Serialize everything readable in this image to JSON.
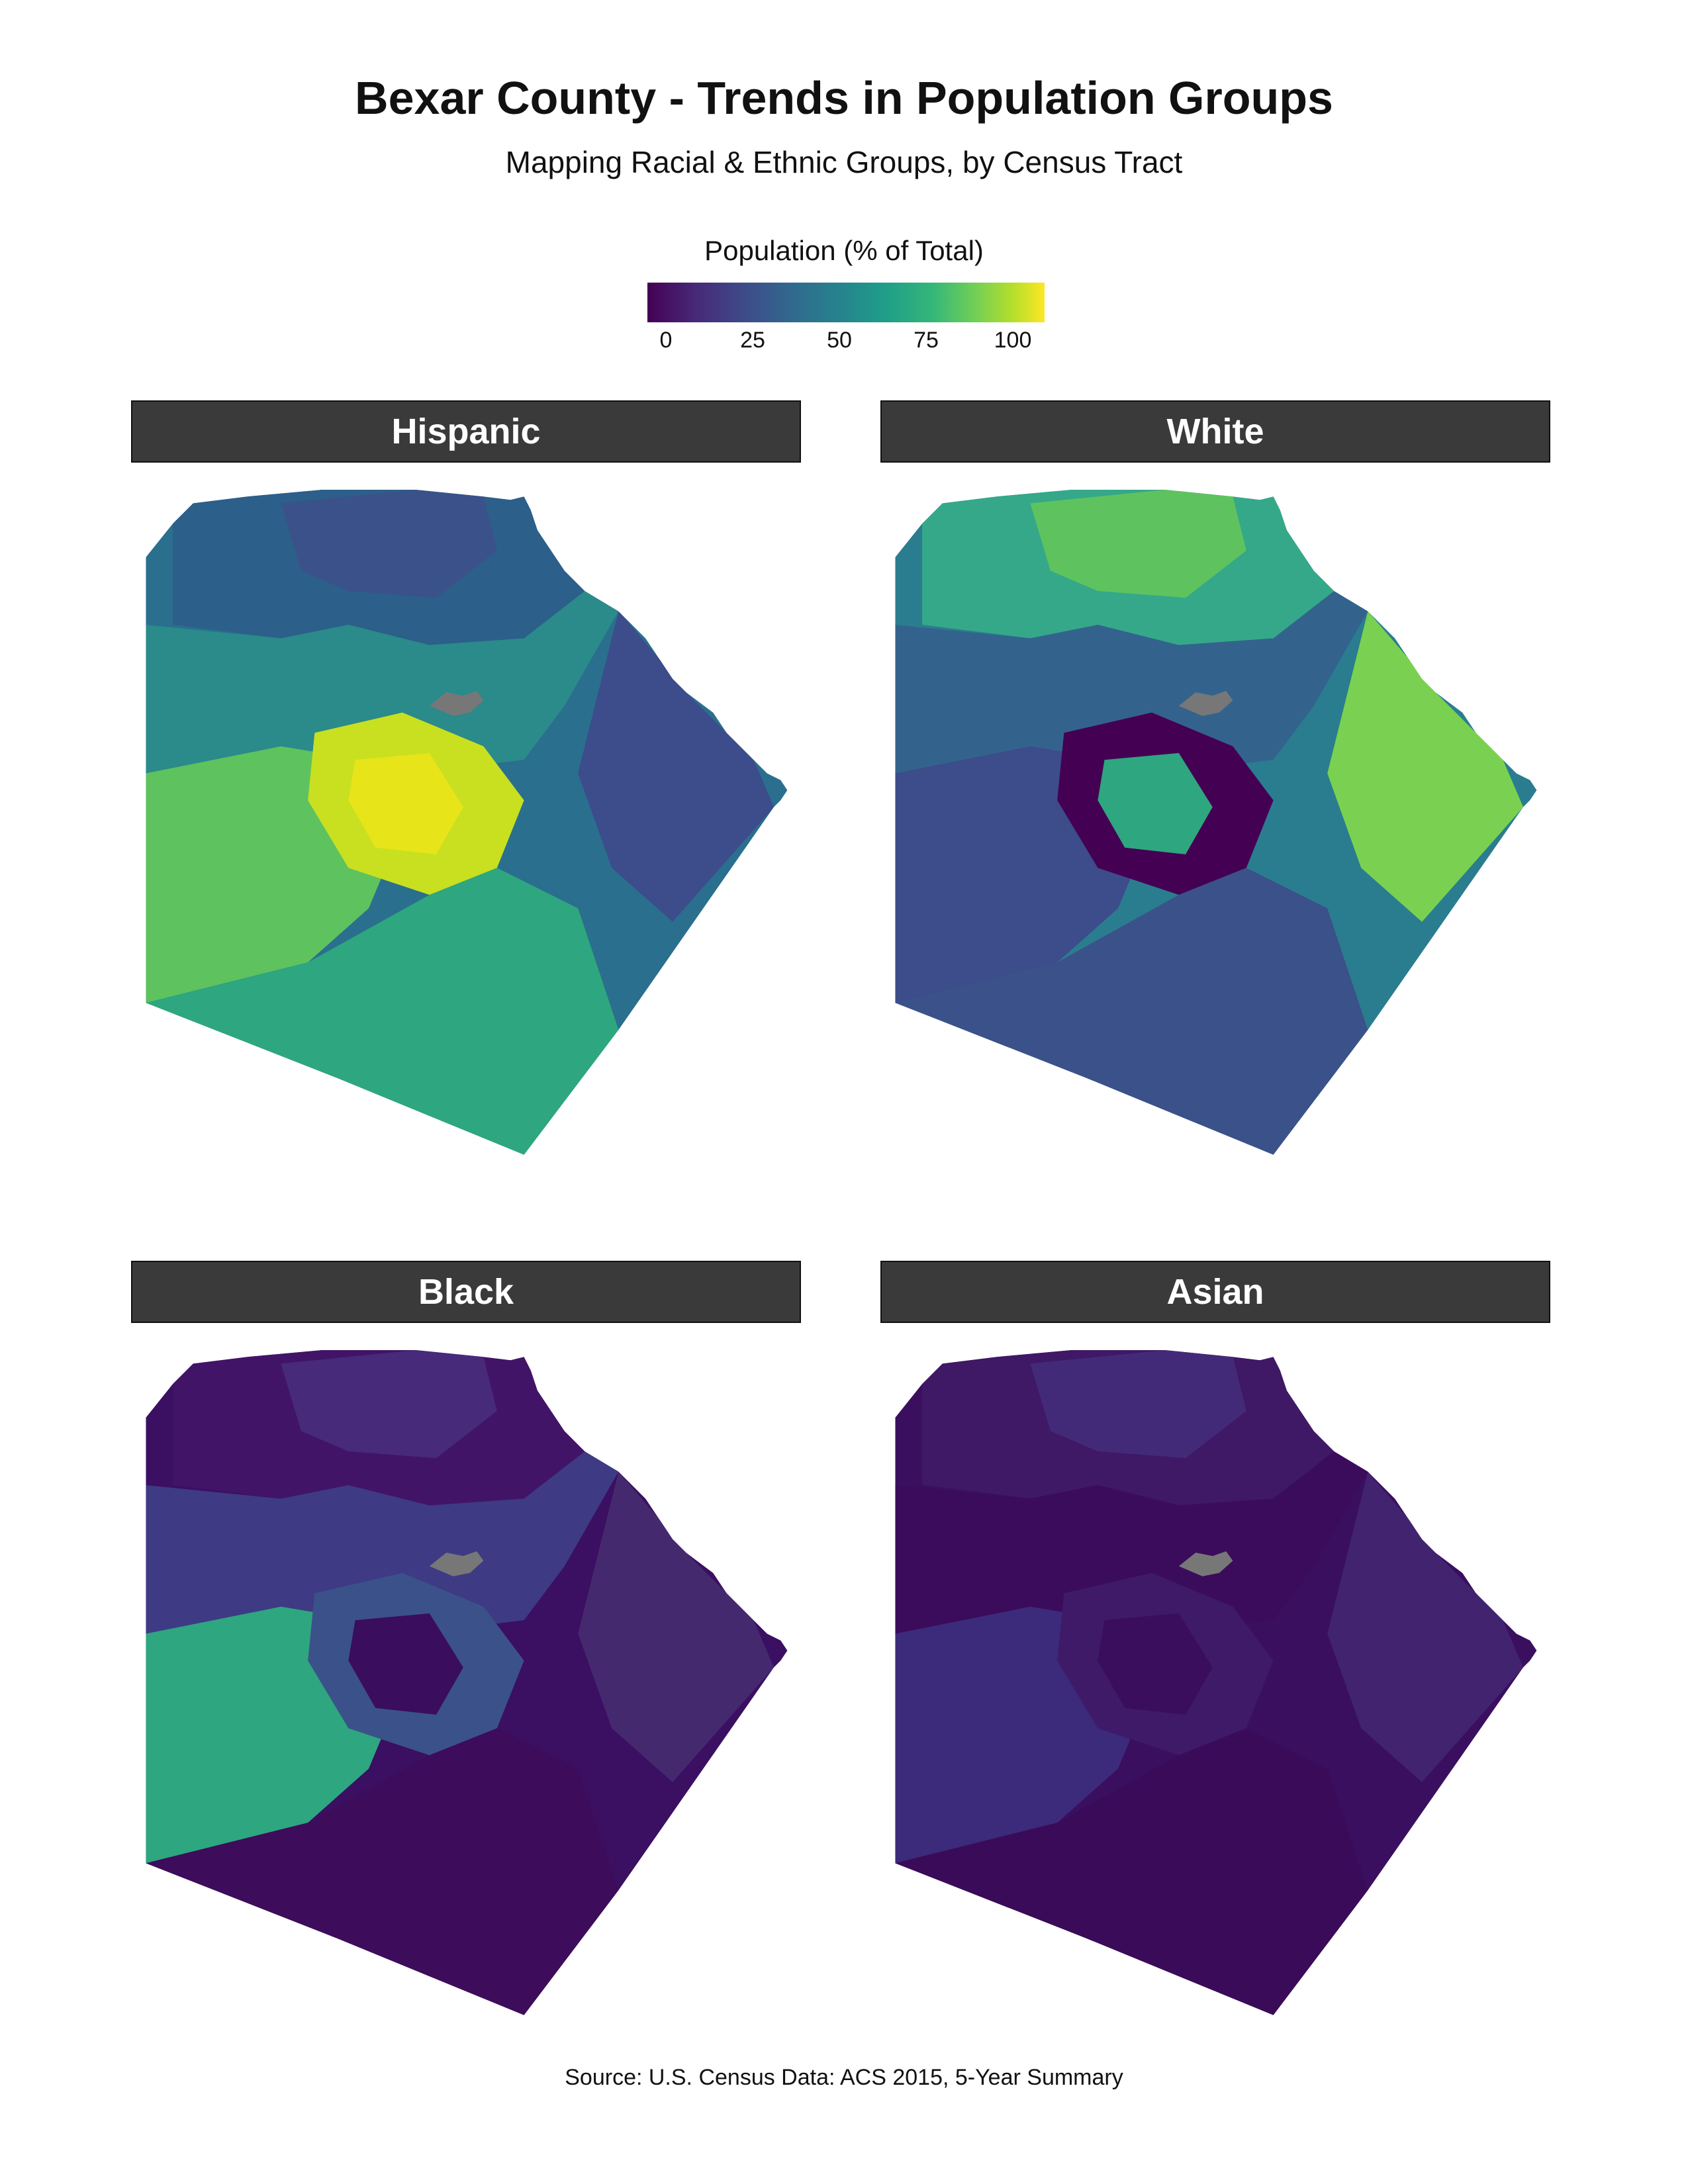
{
  "title": "Bexar County - Trends in Population Groups",
  "subtitle": "Mapping Racial & Ethnic Groups, by Census Tract",
  "legend": {
    "title": "Population (% of Total)",
    "ticks": [
      "0",
      "25",
      "50",
      "75",
      "100"
    ],
    "colors": [
      "#440154",
      "#3e4a89",
      "#26828e",
      "#35b779",
      "#fde725"
    ]
  },
  "panels": [
    {
      "label": "Hispanic",
      "base": "#2a6f8e",
      "regions": [
        {
          "c": "#2c5f8a"
        },
        {
          "c": "#3b5189"
        },
        {
          "c": "#2b8a8a"
        },
        {
          "c": "#5ec25f"
        },
        {
          "c": "#c8e020"
        },
        {
          "c": "#e7e419"
        },
        {
          "c": "#3d4c8a"
        },
        {
          "c": "#2ea67f"
        }
      ]
    },
    {
      "label": "White",
      "base": "#2a7d8e",
      "regions": [
        {
          "c": "#35a889"
        },
        {
          "c": "#5ec25f"
        },
        {
          "c": "#33638d"
        },
        {
          "c": "#3d4c8a"
        },
        {
          "c": "#440154"
        },
        {
          "c": "#2ea67f"
        },
        {
          "c": "#7ad151"
        },
        {
          "c": "#3b5189"
        }
      ]
    },
    {
      "label": "Black",
      "base": "#3b0f62",
      "regions": [
        {
          "c": "#421467"
        },
        {
          "c": "#472a7a"
        },
        {
          "c": "#3e3a84"
        },
        {
          "c": "#2ea67f"
        },
        {
          "c": "#3b5189"
        },
        {
          "c": "#3a0d5e"
        },
        {
          "c": "#45296f"
        },
        {
          "c": "#3d0c5a"
        }
      ]
    },
    {
      "label": "Asian",
      "base": "#3a0f5f",
      "regions": [
        {
          "c": "#3f1866"
        },
        {
          "c": "#432a79"
        },
        {
          "c": "#3b0c5b"
        },
        {
          "c": "#3c2a7a"
        },
        {
          "c": "#3e1a69"
        },
        {
          "c": "#3a0d5d"
        },
        {
          "c": "#41236f"
        },
        {
          "c": "#3a0b58"
        }
      ]
    }
  ],
  "missing_color": "#777777",
  "source": "Source: U.S. Census Data: ACS 2015, 5-Year Summary"
}
